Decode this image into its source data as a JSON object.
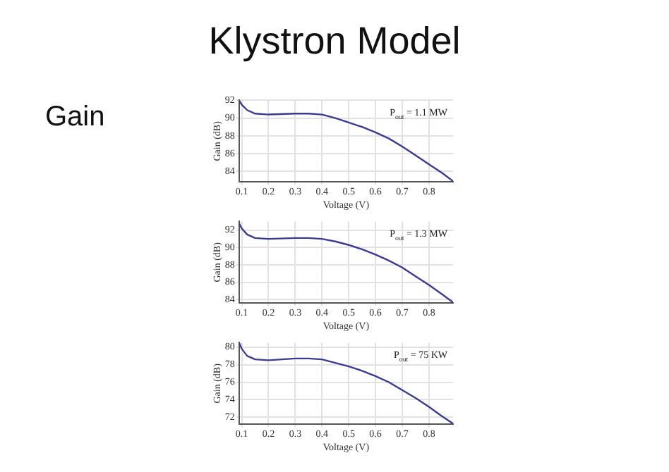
{
  "chart_data": [
    {
      "type": "line",
      "title": "Klystron Model",
      "subtitle": "Gain",
      "xlabel": "Voltage (V)",
      "ylabel": "Gain (dB)",
      "annotations": [
        "P$_{out}$ = 1.1 MW"
      ],
      "grid": true,
      "marker": "none",
      "xlim": [
        0.09,
        0.89
      ],
      "ylim": [
        82.8,
        92
      ],
      "xticks": [
        0.1,
        0.2,
        0.3,
        0.4,
        0.5,
        0.6,
        0.7,
        0.8
      ],
      "yticks": [
        84,
        86,
        88,
        90,
        92
      ],
      "series": [
        {
          "color": "#3b3b8f",
          "x": [
            0.09,
            0.1,
            0.12,
            0.15,
            0.2,
            0.3,
            0.35,
            0.4,
            0.45,
            0.5,
            0.55,
            0.6,
            0.65,
            0.7,
            0.75,
            0.8,
            0.85,
            0.89
          ],
          "values": [
            92,
            91.5,
            90.9,
            90.5,
            90.4,
            90.5,
            90.5,
            90.4,
            90.0,
            89.5,
            89.0,
            88.4,
            87.7,
            86.8,
            85.8,
            84.8,
            83.8,
            82.9
          ]
        }
      ]
    },
    {
      "type": "line",
      "xlabel": "Voltage (V)",
      "ylabel": "Gain (dB)",
      "annotations": [
        "P$_{out}$ = 1.3 MW"
      ],
      "grid": true,
      "marker": "none",
      "xlim": [
        0.09,
        0.89
      ],
      "ylim": [
        83.6,
        93
      ],
      "xticks": [
        0.1,
        0.2,
        0.3,
        0.4,
        0.5,
        0.6,
        0.7,
        0.8
      ],
      "yticks": [
        84,
        86,
        88,
        90,
        92
      ],
      "series": [
        {
          "color": "#3b3b8f",
          "x": [
            0.09,
            0.1,
            0.12,
            0.15,
            0.2,
            0.3,
            0.35,
            0.4,
            0.45,
            0.5,
            0.55,
            0.6,
            0.65,
            0.7,
            0.75,
            0.8,
            0.85,
            0.89
          ],
          "values": [
            92.8,
            92.2,
            91.5,
            91.1,
            91.0,
            91.1,
            91.1,
            91.0,
            90.7,
            90.3,
            89.8,
            89.2,
            88.5,
            87.7,
            86.7,
            85.7,
            84.6,
            83.7
          ]
        }
      ]
    },
    {
      "type": "line",
      "xlabel": "Voltage (V)",
      "ylabel": "Gain (dB)",
      "annotations": [
        "P$_{out}$ = 75 KW"
      ],
      "grid": true,
      "marker": "none",
      "xlim": [
        0.09,
        0.89
      ],
      "ylim": [
        71.2,
        80.5
      ],
      "xticks": [
        0.1,
        0.2,
        0.3,
        0.4,
        0.5,
        0.6,
        0.7,
        0.8
      ],
      "yticks": [
        72,
        74,
        76,
        78,
        80
      ],
      "series": [
        {
          "color": "#3b3b8f",
          "x": [
            0.09,
            0.1,
            0.12,
            0.15,
            0.2,
            0.3,
            0.35,
            0.4,
            0.45,
            0.5,
            0.55,
            0.6,
            0.65,
            0.7,
            0.75,
            0.8,
            0.85,
            0.89
          ],
          "values": [
            80.5,
            79.8,
            79.0,
            78.6,
            78.5,
            78.7,
            78.7,
            78.6,
            78.2,
            77.8,
            77.3,
            76.7,
            76.0,
            75.1,
            74.2,
            73.2,
            72.1,
            71.3
          ]
        }
      ]
    }
  ]
}
